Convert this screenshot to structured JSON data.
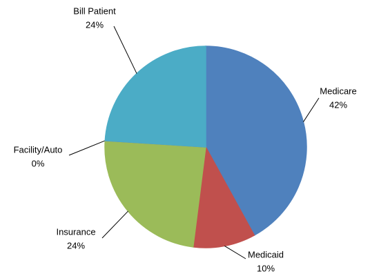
{
  "chart_data": {
    "type": "pie",
    "categories": [
      "Medicare",
      "Medicaid",
      "Insurance",
      "Facility/Auto",
      "Bill Patient"
    ],
    "values": [
      42,
      10,
      24,
      0,
      24
    ],
    "value_labels": [
      "42%",
      "10%",
      "24%",
      "0%",
      "24%"
    ],
    "colors": [
      "#4f81bd",
      "#c0504d",
      "#9bbb59",
      "#8064a2",
      "#4bacc6"
    ]
  }
}
